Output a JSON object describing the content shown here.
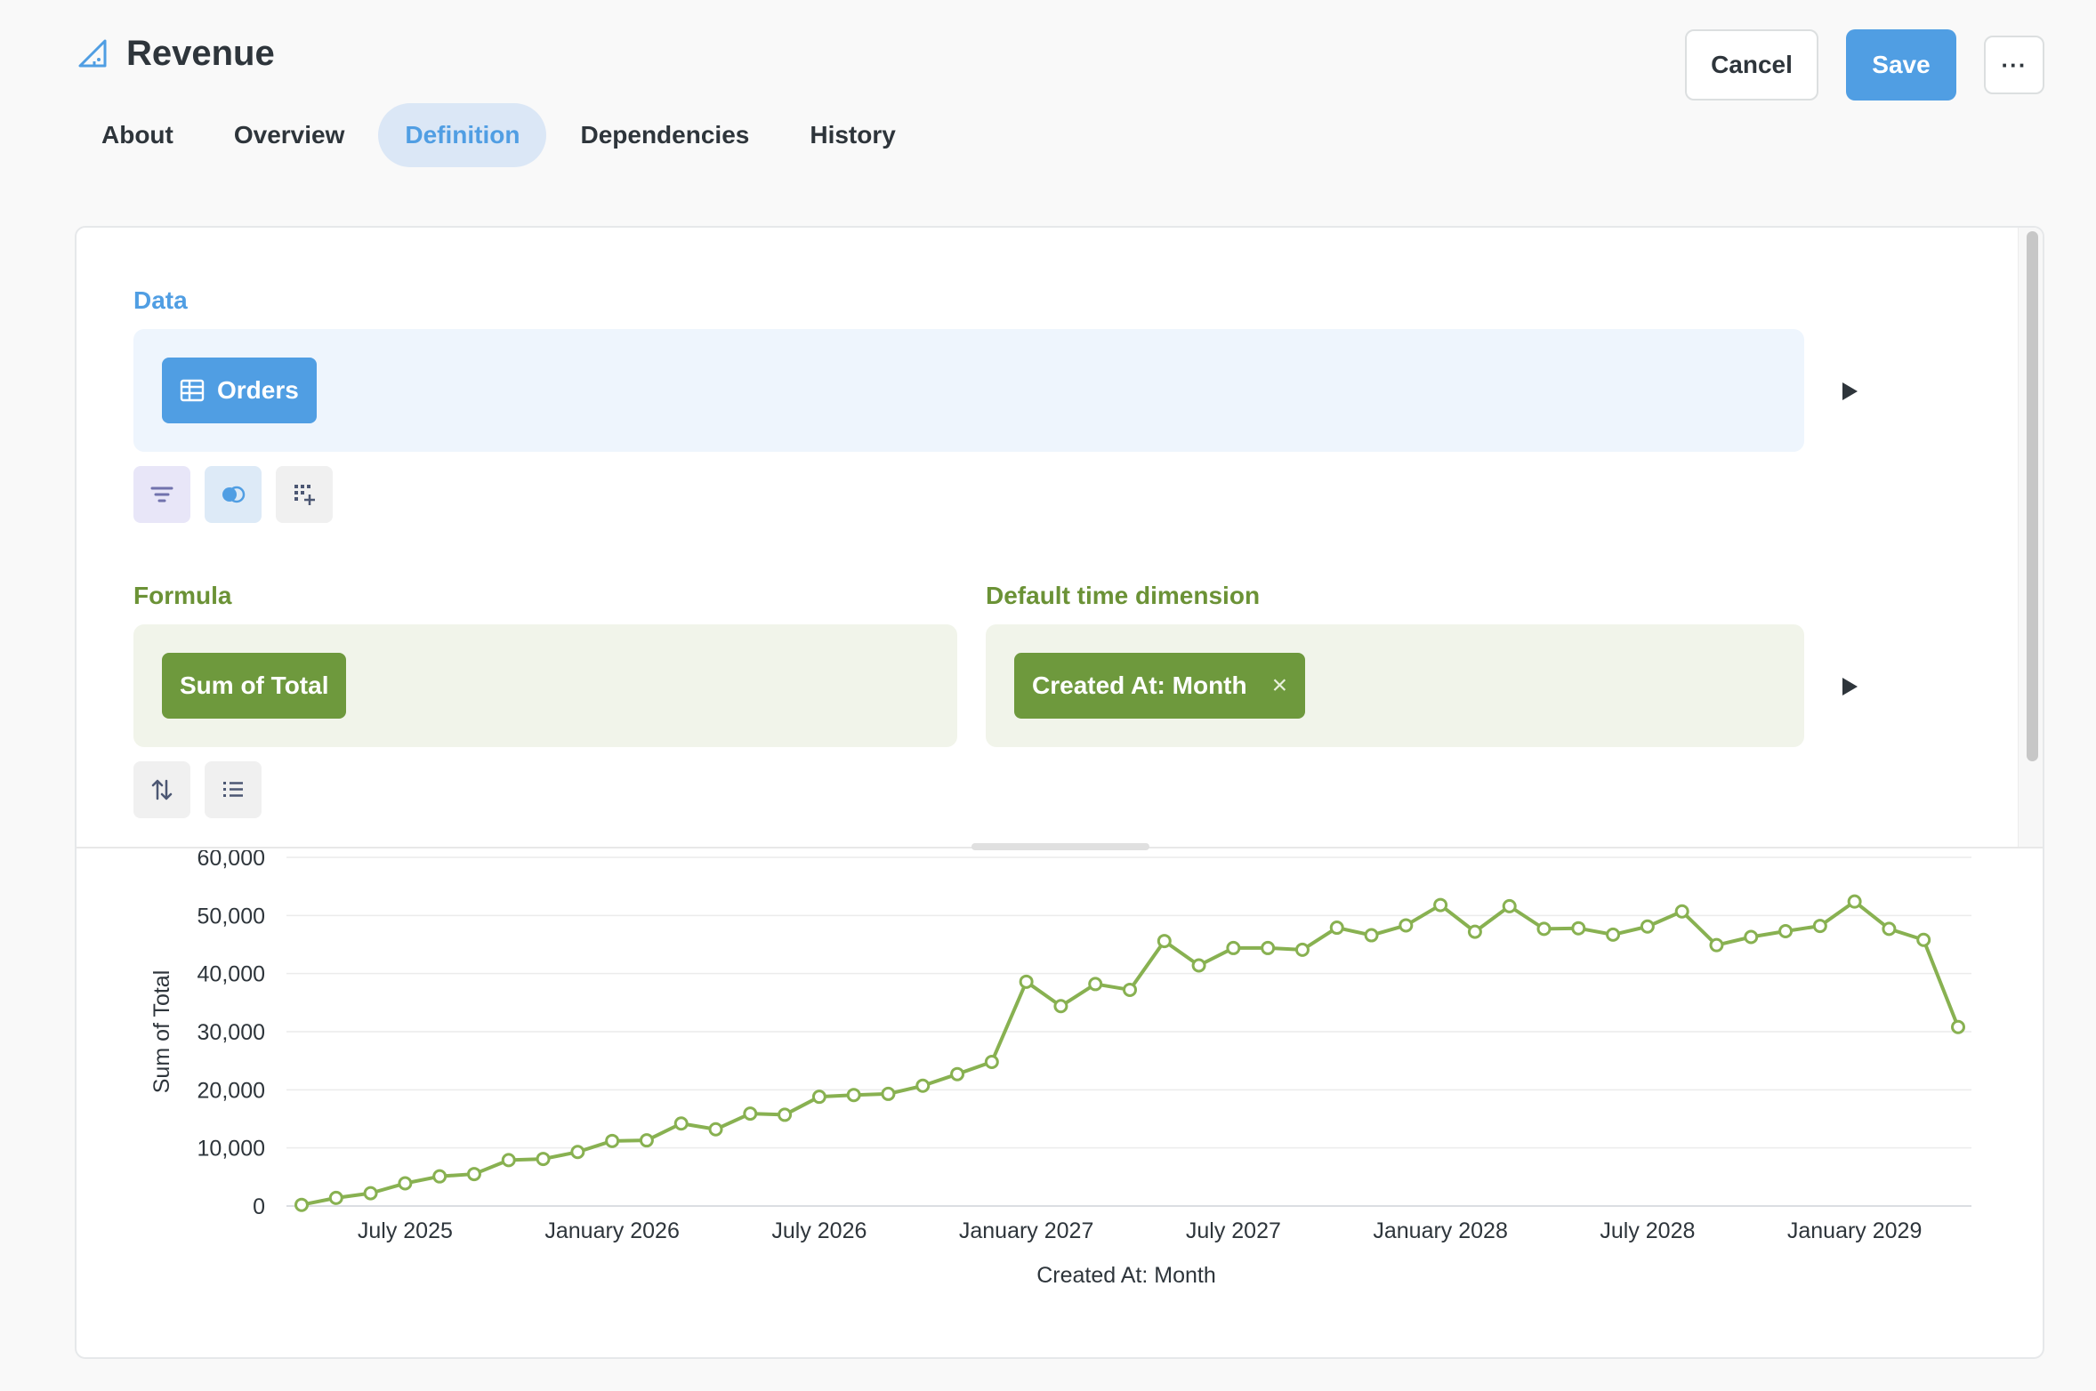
{
  "header": {
    "title": "Revenue",
    "icon": "metric-icon"
  },
  "tabs": [
    {
      "label": "About",
      "active": false
    },
    {
      "label": "Overview",
      "active": false
    },
    {
      "label": "Definition",
      "active": true
    },
    {
      "label": "Dependencies",
      "active": false
    },
    {
      "label": "History",
      "active": false
    }
  ],
  "actions": {
    "cancel_label": "Cancel",
    "save_label": "Save",
    "more_label": "···"
  },
  "editor": {
    "data": {
      "label": "Data",
      "table": "Orders"
    },
    "formula": {
      "label": "Formula",
      "value": "Sum of Total"
    },
    "time_dimension": {
      "label": "Default time dimension",
      "value": "Created At: Month",
      "remove": "×"
    }
  },
  "colors": {
    "accent_blue": "#509ee3",
    "accent_green": "#6e993d",
    "line": "#88b151",
    "filter_purple": "#7172ad"
  },
  "chart_data": {
    "type": "line",
    "xlabel": "Created At: Month",
    "ylabel": "Sum of Total",
    "ylim": [
      0,
      60000
    ],
    "yticks": [
      "0",
      "10,000",
      "20,000",
      "30,000",
      "40,000",
      "50,000",
      "60,000"
    ],
    "xticks": [
      {
        "label": "July 2025",
        "index": 3
      },
      {
        "label": "January 2026",
        "index": 9
      },
      {
        "label": "July 2026",
        "index": 15
      },
      {
        "label": "January 2027",
        "index": 21
      },
      {
        "label": "July 2027",
        "index": 27
      },
      {
        "label": "January 2028",
        "index": 33
      },
      {
        "label": "July 2028",
        "index": 39
      },
      {
        "label": "January 2029",
        "index": 45
      }
    ],
    "grid": true,
    "series": [
      {
        "values": [
          200,
          1400,
          2200,
          3900,
          5100,
          5500,
          7900,
          8100,
          9300,
          11200,
          11300,
          14200,
          13200,
          15900,
          15700,
          18800,
          19100,
          19300,
          20700,
          22700,
          24800,
          38600,
          34400,
          38200,
          37200,
          45600,
          41400,
          44400,
          44400,
          44100,
          47900,
          46600,
          48300,
          51800,
          47200,
          51600,
          47700,
          47800,
          46700,
          48100,
          50700,
          44900,
          46300,
          47300,
          48200,
          52400,
          47700,
          45800,
          30800
        ]
      }
    ]
  }
}
